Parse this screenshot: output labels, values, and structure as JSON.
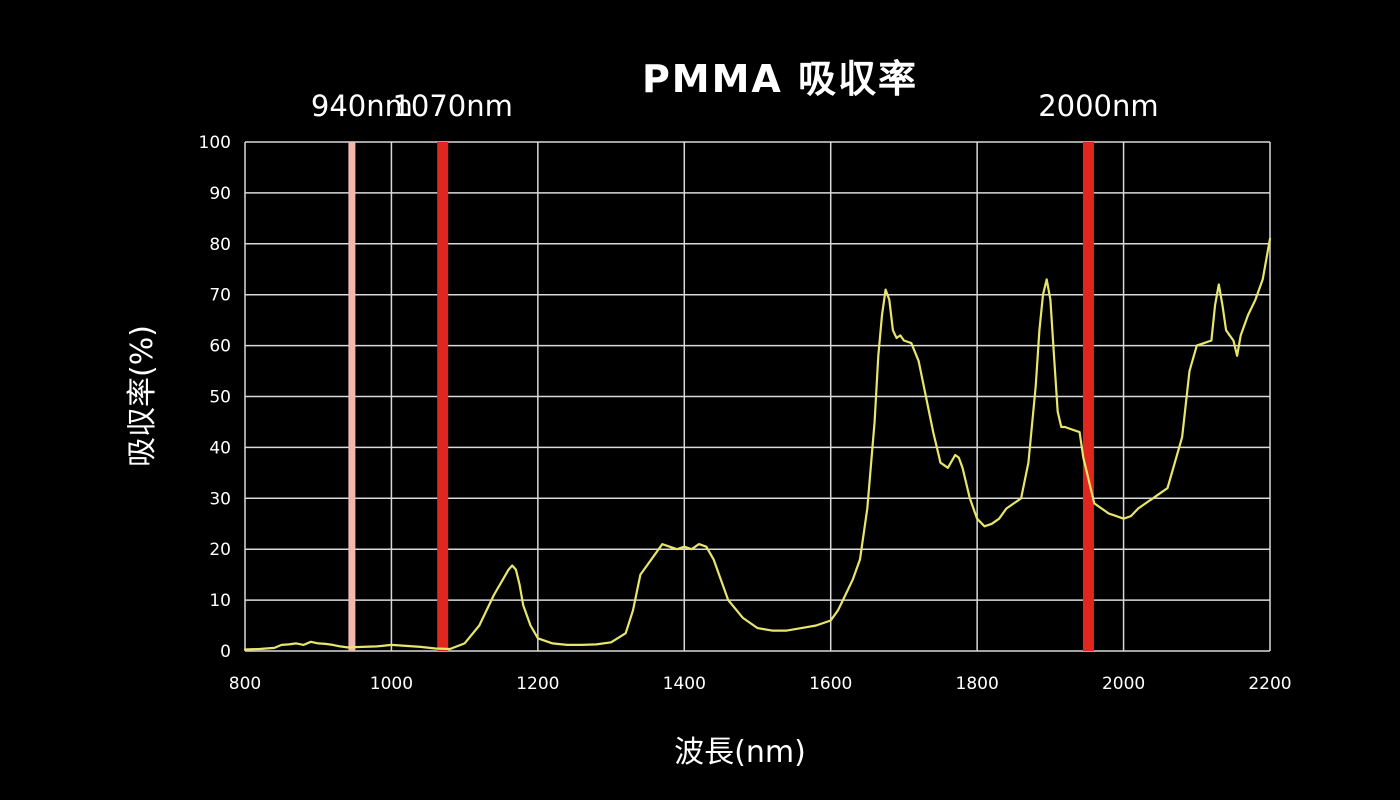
{
  "chart_data": {
    "type": "line",
    "title": "PMMA 吸収率",
    "xlabel": "波長(nm)",
    "ylabel": "吸収率(%)",
    "xlim": [
      800,
      2200
    ],
    "ylim": [
      0,
      100
    ],
    "x_ticks": [
      800,
      1000,
      1200,
      1400,
      1600,
      1800,
      2000,
      2200
    ],
    "y_ticks": [
      0,
      10,
      20,
      30,
      40,
      50,
      60,
      70,
      80,
      90,
      100
    ],
    "grid": true,
    "colors": {
      "background": "#000000",
      "grid": "#d9d9d9",
      "series": "#e8e66a",
      "marker_light": "#f2b8b0",
      "marker_strong": "#e0261e",
      "text": "#ffffff"
    },
    "markers": [
      {
        "label": "940nm",
        "x": 946,
        "style": "light"
      },
      {
        "label": "1070nm",
        "x": 1070,
        "style": "strong"
      },
      {
        "label": "2000nm",
        "x": 1952,
        "style": "strong"
      }
    ],
    "series": [
      {
        "x": [
          800,
          820,
          840,
          850,
          860,
          870,
          880,
          890,
          900,
          910,
          920,
          930,
          940,
          960,
          980,
          1000,
          1020,
          1040,
          1060,
          1080,
          1100,
          1120,
          1140,
          1160,
          1165,
          1170,
          1175,
          1180,
          1190,
          1200,
          1220,
          1240,
          1260,
          1280,
          1300,
          1320,
          1330,
          1340,
          1350,
          1360,
          1370,
          1380,
          1390,
          1400,
          1410,
          1420,
          1430,
          1440,
          1450,
          1460,
          1480,
          1500,
          1520,
          1540,
          1560,
          1580,
          1600,
          1610,
          1620,
          1630,
          1640,
          1650,
          1660,
          1665,
          1670,
          1675,
          1680,
          1685,
          1690,
          1695,
          1700,
          1710,
          1720,
          1730,
          1740,
          1750,
          1760,
          1770,
          1775,
          1780,
          1790,
          1800,
          1810,
          1820,
          1830,
          1840,
          1850,
          1860,
          1870,
          1880,
          1885,
          1890,
          1895,
          1900,
          1905,
          1910,
          1915,
          1920,
          1930,
          1940,
          1945,
          1950,
          1955,
          1960,
          1970,
          1980,
          1990,
          2000,
          2010,
          2020,
          2030,
          2040,
          2050,
          2060,
          2070,
          2080,
          2090,
          2100,
          2110,
          2120,
          2125,
          2130,
          2135,
          2140,
          2145,
          2150,
          2155,
          2160,
          2170,
          2180,
          2190,
          2200
        ],
        "y": [
          0.3,
          0.4,
          0.6,
          1.2,
          1.3,
          1.5,
          1.2,
          1.8,
          1.5,
          1.4,
          1.2,
          0.9,
          0.7,
          0.8,
          0.9,
          1.2,
          1.0,
          0.8,
          0.5,
          0.4,
          1.5,
          5.0,
          11.0,
          16.0,
          16.8,
          16.0,
          13.0,
          9.0,
          5.0,
          2.5,
          1.5,
          1.2,
          1.2,
          1.3,
          1.7,
          3.5,
          8.0,
          15.0,
          17.0,
          19.0,
          21.0,
          20.5,
          20.0,
          20.5,
          20.0,
          21.0,
          20.5,
          18.0,
          14.0,
          10.0,
          6.5,
          4.5,
          4.0,
          4.0,
          4.5,
          5.0,
          6.0,
          8.0,
          11.0,
          14.0,
          18.0,
          28.0,
          45.0,
          58.0,
          66.0,
          71.0,
          69.0,
          63.0,
          61.5,
          62.0,
          61.0,
          60.5,
          57.0,
          50.0,
          43.0,
          37.0,
          36.0,
          38.5,
          38.0,
          36.0,
          30.0,
          26.0,
          24.5,
          25.0,
          26.0,
          28.0,
          29.0,
          30.0,
          37.0,
          52.0,
          63.0,
          70.0,
          73.0,
          69.0,
          58.0,
          47.0,
          44.0,
          44.0,
          43.5,
          43.0,
          38.0,
          35.0,
          32.0,
          29.0,
          28.0,
          27.0,
          26.5,
          26.0,
          26.5,
          28.0,
          29.0,
          30.0,
          31.0,
          32.0,
          37.0,
          42.0,
          55.0,
          60.0,
          60.5,
          61.0,
          68.0,
          72.0,
          68.0,
          63.0,
          62.0,
          61.0,
          58.0,
          62.0,
          66.0,
          69.0,
          73.0,
          81.0
        ]
      }
    ]
  }
}
